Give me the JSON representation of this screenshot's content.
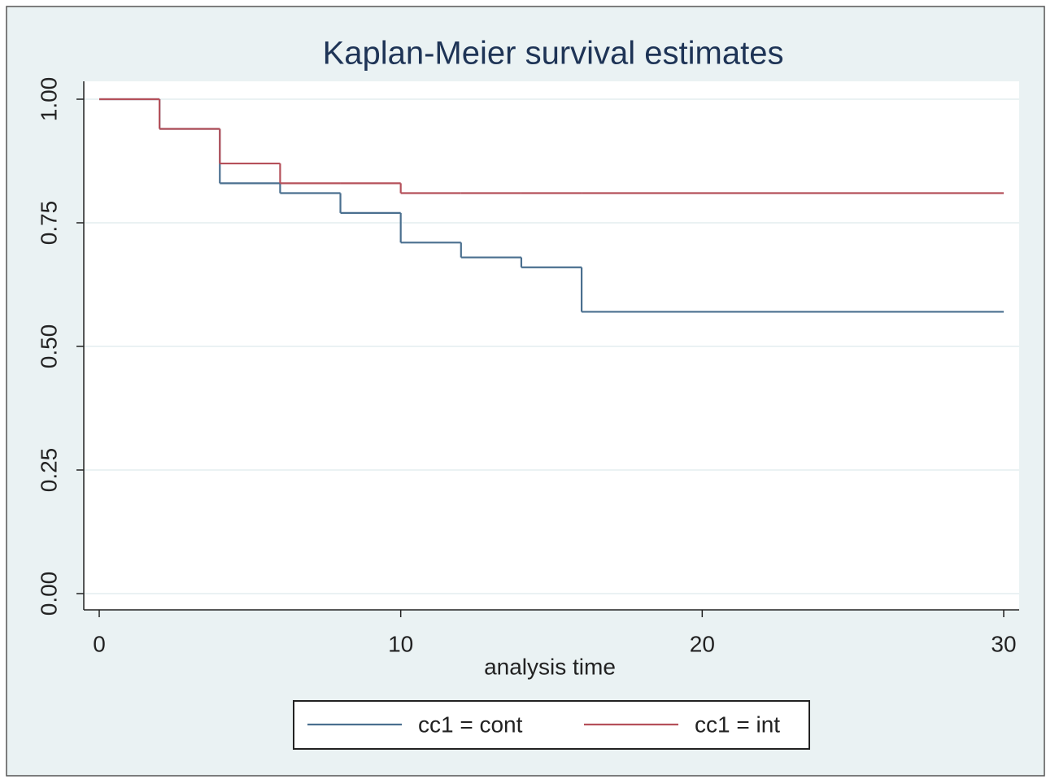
{
  "chart_data": {
    "type": "step",
    "title": "Kaplan-Meier survival estimates",
    "x_label": "analysis time",
    "x": [
      0,
      2,
      4,
      6,
      8,
      10,
      12,
      14,
      16,
      30
    ],
    "series": [
      {
        "name": "cc1 = cont",
        "color": "#4a6f8f",
        "values": [
          1.0,
          0.94,
          0.83,
          0.81,
          0.77,
          0.71,
          0.68,
          0.66,
          0.57,
          0.57
        ]
      },
      {
        "name": "cc1 = int",
        "color": "#b5505a",
        "values": [
          1.0,
          0.94,
          0.87,
          0.83,
          0.83,
          0.81,
          0.81,
          0.81,
          0.81,
          0.81
        ]
      }
    ],
    "xlim": [
      0,
      30
    ],
    "xticks": [
      0,
      10,
      20,
      30
    ],
    "ylim": [
      0,
      1
    ],
    "yticks": [
      {
        "value": 0,
        "label": "0.00"
      },
      {
        "value": 0.25,
        "label": "0.25"
      },
      {
        "value": 0.5,
        "label": "0.50"
      },
      {
        "value": 0.75,
        "label": "0.75"
      },
      {
        "value": 1,
        "label": "1.00"
      }
    ],
    "grid": true,
    "legend": "bottom"
  }
}
